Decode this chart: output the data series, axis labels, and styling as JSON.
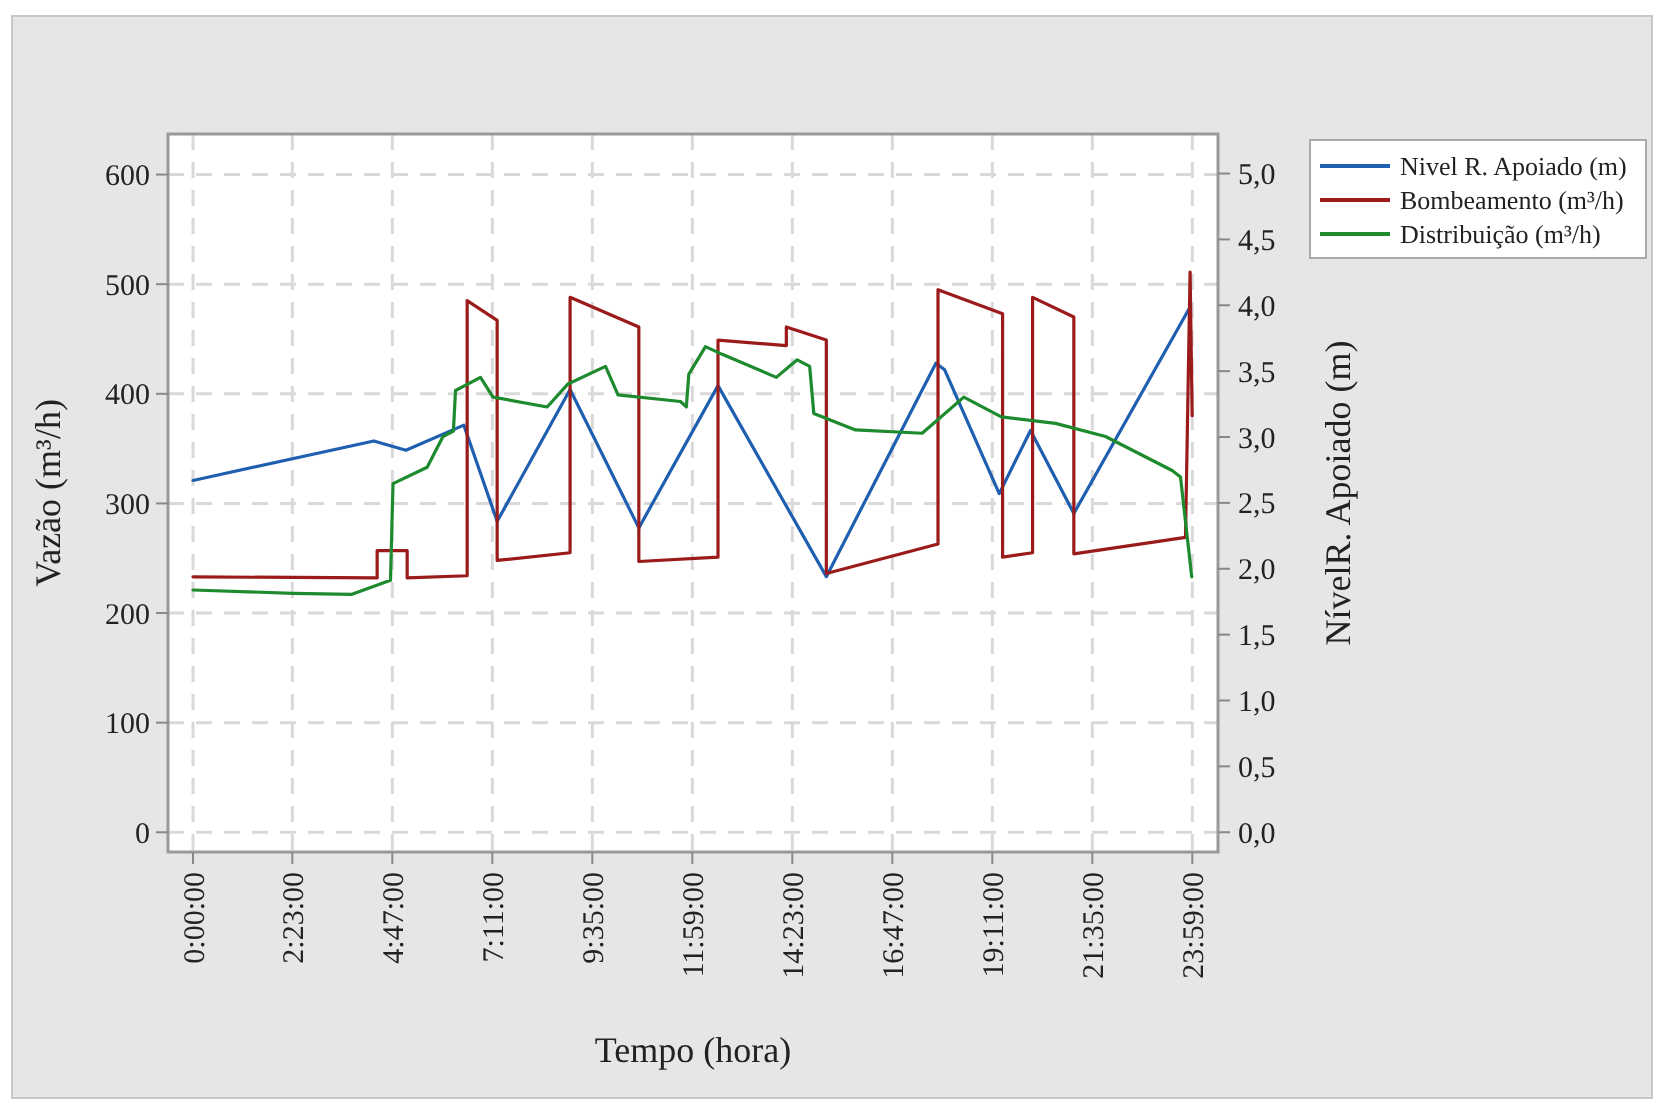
{
  "chart_data": {
    "type": "line",
    "xlabel": "Tempo (hora)",
    "ylabel": "Vazão (m³/h)",
    "y2label": "NívelR. Apoiado (m)",
    "xlim": [
      -0.6,
      24.6
    ],
    "ylim": [
      -18,
      637
    ],
    "y2lim": [
      -0.15,
      5.3
    ],
    "xticks": [
      {
        "value": 0,
        "label": "0:00:00"
      },
      {
        "value": 2.3833333333,
        "label": "2:23:00"
      },
      {
        "value": 4.7833333333,
        "label": "4:47:00"
      },
      {
        "value": 7.1833333333,
        "label": "7:11:00"
      },
      {
        "value": 9.5833333333,
        "label": "9:35:00"
      },
      {
        "value": 11.9833333333,
        "label": "11:59:00"
      },
      {
        "value": 14.3833333333,
        "label": "14:23:00"
      },
      {
        "value": 16.7833333333,
        "label": "16:47:00"
      },
      {
        "value": 19.1833333333,
        "label": "19:11:00"
      },
      {
        "value": 21.5833333333,
        "label": "21:35:00"
      },
      {
        "value": 23.9833333333,
        "label": "23:59:00"
      }
    ],
    "yticks": [
      0,
      100,
      200,
      300,
      400,
      500,
      600
    ],
    "y2ticks": [
      {
        "value": 0,
        "label": "0,0"
      },
      {
        "value": 0.5,
        "label": "0,5"
      },
      {
        "value": 1,
        "label": "1,0"
      },
      {
        "value": 1.5,
        "label": "1,5"
      },
      {
        "value": 2,
        "label": "2,0"
      },
      {
        "value": 2.5,
        "label": "2,5"
      },
      {
        "value": 3,
        "label": "3,0"
      },
      {
        "value": 3.5,
        "label": "3,5"
      },
      {
        "value": 4,
        "label": "4,0"
      },
      {
        "value": 4.5,
        "label": "4,5"
      },
      {
        "value": 5,
        "label": "5,0"
      }
    ],
    "grid": true,
    "legend": "right",
    "line_style": "solid",
    "marker": "none",
    "series": [
      {
        "name": "Nivel R. Apoiado (m)",
        "color": "#1f5fb0",
        "axis": "y2",
        "x": [
          0,
          4.34,
          5.11,
          6.5,
          7.3,
          9.05,
          10.7,
          12.6,
          15.2,
          17.83,
          18.04,
          19.35,
          20.1,
          21.14,
          23.9
        ],
        "values": [
          2.67,
          2.97,
          2.9,
          3.09,
          2.36,
          3.36,
          2.31,
          3.39,
          1.94,
          3.56,
          3.51,
          2.57,
          3.05,
          2.42,
          3.97
        ]
      },
      {
        "name": "Bombeamento (m³/h)",
        "color": "#9b1b1b",
        "x": [
          0,
          4.42,
          4.42,
          5.14,
          5.14,
          6.58,
          6.58,
          7.3,
          7.3,
          9.05,
          9.05,
          10.7,
          10.7,
          12.6,
          12.6,
          14.24,
          14.24,
          15.2,
          15.2,
          17.88,
          17.88,
          19.43,
          19.43,
          20.15,
          20.15,
          21.14,
          21.14,
          23.82,
          23.93,
          23.98
        ],
        "values": [
          233,
          232,
          257,
          257,
          232,
          234,
          485,
          467,
          248,
          255,
          488,
          461,
          247,
          251,
          449,
          444,
          461,
          449,
          236,
          263,
          495,
          473,
          251,
          255,
          488,
          470,
          254,
          269,
          511,
          380
        ]
      },
      {
        "name": "Distribuição (m³/h)",
        "color": "#1e8a2e",
        "x": [
          0,
          2.4,
          3.8,
          4.74,
          4.8,
          5.62,
          6.0,
          6.25,
          6.3,
          6.9,
          7.2,
          8.5,
          9.0,
          9.9,
          10.2,
          11.7,
          11.84,
          11.9,
          12.3,
          12.7,
          14.0,
          14.5,
          14.8,
          14.9,
          15.9,
          17.5,
          18.5,
          19.4,
          20.7,
          21.9,
          23.5,
          23.7,
          23.97
        ],
        "values": [
          221,
          218,
          217,
          230,
          318,
          333,
          361,
          366,
          403,
          415,
          397,
          388,
          409,
          425,
          399,
          393,
          388,
          418,
          443,
          436,
          415,
          431,
          425,
          382,
          367,
          364,
          397,
          379,
          373,
          361,
          330,
          324,
          233
        ]
      }
    ]
  }
}
